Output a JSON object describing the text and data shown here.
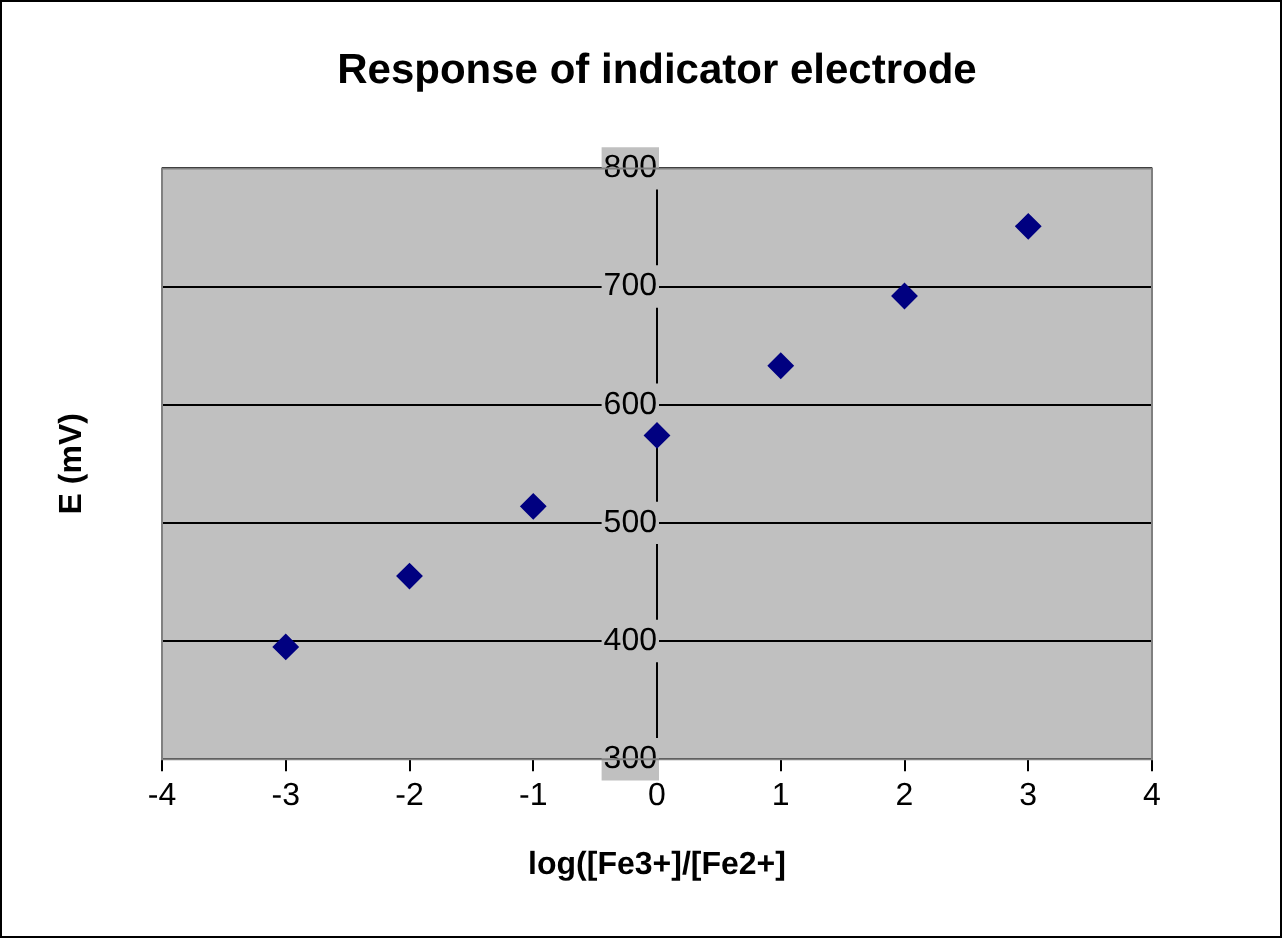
{
  "chart_data": {
    "type": "scatter",
    "title": "Response of indicator electrode",
    "xlabel": "log([Fe3+]/[Fe2+]",
    "ylabel": "E (mV)",
    "x": [
      -3,
      -2,
      -1,
      0,
      1,
      2,
      3
    ],
    "series": [
      {
        "color": "#000080",
        "values": [
          395,
          455,
          514,
          574,
          633,
          692,
          751
        ]
      }
    ],
    "xlim": [
      -4,
      4
    ],
    "xticks": [
      -4,
      -3,
      -2,
      -1,
      0,
      1,
      2,
      3,
      4
    ],
    "ylim": [
      300,
      800
    ],
    "yticks": [
      300,
      400,
      500,
      600,
      700,
      800
    ],
    "grid": "y",
    "legend": false,
    "marker": "diamond"
  }
}
